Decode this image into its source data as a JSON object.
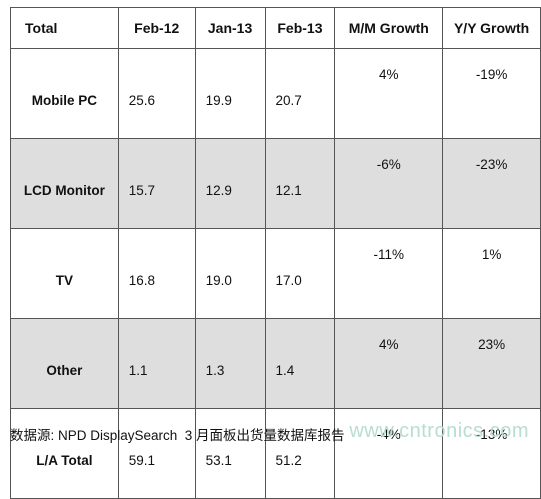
{
  "table": {
    "headers": [
      "Total",
      "Feb-12",
      "Jan-13",
      "Feb-13",
      "M/M Growth",
      "Y/Y Growth"
    ],
    "rows": [
      {
        "label": "Mobile PC",
        "feb12": "25.6",
        "jan13": "19.9",
        "feb13": "20.7",
        "mm": "4%",
        "yy": "-19%"
      },
      {
        "label": "LCD Monitor",
        "feb12": "15.7",
        "jan13": "12.9",
        "feb13": "12.1",
        "mm": "-6%",
        "yy": "-23%"
      },
      {
        "label": "TV",
        "feb12": "16.8",
        "jan13": "19.0",
        "feb13": "17.0",
        "mm": "-11%",
        "yy": "1%"
      },
      {
        "label": "Other",
        "feb12": "1.1",
        "jan13": "1.3",
        "feb13": "1.4",
        "mm": "4%",
        "yy": "23%"
      },
      {
        "label": "L/A Total",
        "feb12": "59.1",
        "jan13": "53.1",
        "feb13": "51.2",
        "mm": "-4%",
        "yy": "-13%"
      }
    ]
  },
  "footer": {
    "source": "数据源: NPD DisplaySearch  3 月面板出货量数据库报告",
    "watermark": "www.cntronics.com"
  },
  "colors": {
    "shaded_row": "#dedede",
    "border": "#555555",
    "watermark": "#b9dcd4"
  }
}
